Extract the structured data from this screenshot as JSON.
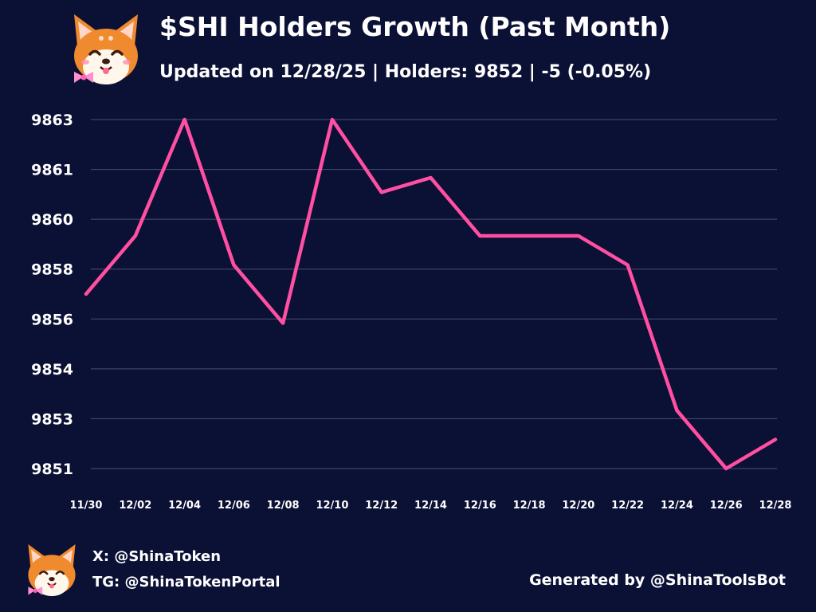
{
  "header": {
    "title": "$SHI Holders Growth (Past Month)",
    "subtitle": "Updated on 12/28/25 | Holders: 9852 | -5 (-0.05%)"
  },
  "footer": {
    "x_handle": "X: @ShinaToken",
    "tg_handle": "TG: @ShinaTokenPortal",
    "generated_by": "Generated by @ShinaToolsBot"
  },
  "logo": {
    "icon": "shiba-dog-mascot-icon"
  },
  "colors": {
    "background": "#0b1035",
    "line": "#ff4fa3",
    "grid": "#4a4f75",
    "text": "#ffffff"
  },
  "chart_data": {
    "type": "line",
    "title": "$SHI Holders Growth (Past Month)",
    "xlabel": "",
    "ylabel": "",
    "grid": true,
    "legend": "none",
    "x_tick_labels": [
      "11/30",
      "12/02",
      "12/04",
      "12/06",
      "12/08",
      "12/10",
      "12/12",
      "12/14",
      "12/16",
      "12/18",
      "12/20",
      "12/22",
      "12/24",
      "12/26",
      "12/28"
    ],
    "y_tick_labels": [
      "9863",
      "9861",
      "9860",
      "9858",
      "9856",
      "9854",
      "9853",
      "9851"
    ],
    "ylim": [
      9851,
      9863
    ],
    "x": [
      "11/30",
      "12/02",
      "12/04",
      "12/06",
      "12/08",
      "12/10",
      "12/12",
      "12/14",
      "12/16",
      "12/18",
      "12/20",
      "12/22",
      "12/24",
      "12/26",
      "12/28"
    ],
    "series": [
      {
        "values": [
          9857,
          9859,
          9863,
          9858,
          9856,
          9863,
          9860.5,
          9861,
          9859,
          9859,
          9859,
          9858,
          9853,
          9851,
          9852
        ]
      }
    ]
  }
}
